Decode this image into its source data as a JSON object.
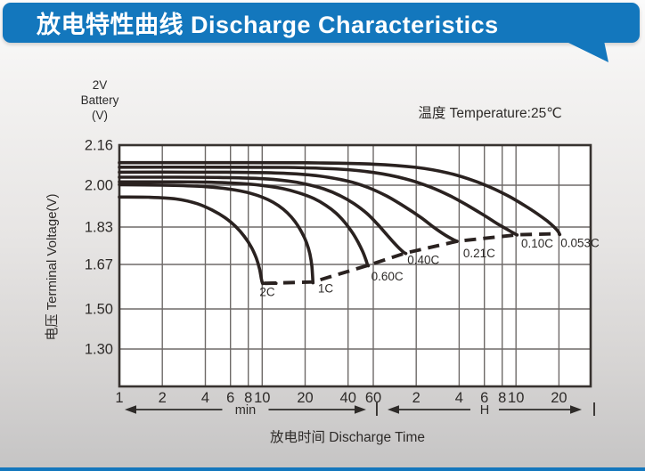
{
  "title_bar": {
    "title": "放电特性曲线 Discharge Characteristics"
  },
  "corner_label": {
    "lines": [
      "2V",
      "Battery",
      "(V)"
    ]
  },
  "chart_data": {
    "type": "line",
    "title": "放电特性曲线 Discharge Characteristics",
    "temperature_note": "温度 Temperature:25℃",
    "xlabel": "放电时间 Discharge Time",
    "ylabel": "电压 Terminal Voltage(V)",
    "x_scale": "log",
    "x_range_minutes": [
      1,
      2000
    ],
    "grid": true,
    "y_ticks": [
      {
        "value": 2.16,
        "label": "2.16"
      },
      {
        "value": 2.0,
        "label": "2.00"
      },
      {
        "value": 1.83,
        "label": "1.83"
      },
      {
        "value": 1.67,
        "label": "1.67"
      },
      {
        "value": 1.5,
        "label": "1.50"
      },
      {
        "value": 1.3,
        "label": "1.30"
      }
    ],
    "x_ticks": [
      {
        "minutes": 1,
        "label": "1"
      },
      {
        "minutes": 2,
        "label": "2"
      },
      {
        "minutes": 4,
        "label": "4"
      },
      {
        "minutes": 6,
        "label": "6"
      },
      {
        "minutes": 8,
        "label": "8"
      },
      {
        "minutes": 10,
        "label": "10"
      },
      {
        "minutes": 20,
        "label": "20"
      },
      {
        "minutes": 40,
        "label": "40"
      },
      {
        "minutes": 60,
        "label": "60"
      },
      {
        "minutes": 120,
        "label": "2"
      },
      {
        "minutes": 240,
        "label": "4"
      },
      {
        "minutes": 360,
        "label": "6"
      },
      {
        "minutes": 480,
        "label": "8"
      },
      {
        "minutes": 600,
        "label": "10"
      },
      {
        "minutes": 1200,
        "label": "20"
      }
    ],
    "x_unit_ranges": [
      {
        "label": "min",
        "from_minutes": 1,
        "to_minutes": 60
      },
      {
        "label": "H",
        "from_minutes": 60,
        "to_minutes": 2000
      }
    ],
    "series": [
      {
        "name": "2C",
        "label_at": [
          9.6,
          1.549
        ],
        "points": [
          [
            1,
            1.952
          ],
          [
            1.6,
            1.951
          ],
          [
            2.5,
            1.944
          ],
          [
            3.5,
            1.925
          ],
          [
            4.5,
            1.898
          ],
          [
            5.5,
            1.868
          ],
          [
            6.5,
            1.833
          ],
          [
            7.5,
            1.79
          ],
          [
            8.4,
            1.744
          ],
          [
            9.1,
            1.697
          ],
          [
            9.6,
            1.652
          ],
          [
            10,
            1.602
          ],
          [
            10.4,
            1.598
          ],
          [
            12.5,
            1.598
          ]
        ]
      },
      {
        "name": "1C",
        "label_at": [
          24.6,
          1.563
        ],
        "points": [
          [
            1,
            2.002
          ],
          [
            2,
            2.0
          ],
          [
            3.5,
            1.996
          ],
          [
            5,
            1.989
          ],
          [
            7,
            1.977
          ],
          [
            9,
            1.961
          ],
          [
            11,
            1.941
          ],
          [
            13,
            1.917
          ],
          [
            15,
            1.888
          ],
          [
            17,
            1.852
          ],
          [
            19,
            1.806
          ],
          [
            20.5,
            1.762
          ],
          [
            21.6,
            1.714
          ],
          [
            22.3,
            1.663
          ],
          [
            22.7,
            1.6
          ]
        ]
      },
      {
        "name": "0.60C",
        "label_at": [
          58,
          1.608
        ],
        "points": [
          [
            1,
            2.013
          ],
          [
            2,
            2.013
          ],
          [
            4,
            2.012
          ],
          [
            7,
            2.007
          ],
          [
            10,
            1.999
          ],
          [
            14,
            1.986
          ],
          [
            18,
            1.969
          ],
          [
            23,
            1.946
          ],
          [
            28,
            1.918
          ],
          [
            33,
            1.886
          ],
          [
            38,
            1.848
          ],
          [
            43,
            1.805
          ],
          [
            47,
            1.765
          ],
          [
            50.5,
            1.726
          ],
          [
            53,
            1.694
          ],
          [
            54.8,
            1.668
          ],
          [
            55.5,
            1.665
          ]
        ]
      },
      {
        "name": "0.40C",
        "label_at": [
          104,
          1.672
        ],
        "points": [
          [
            1,
            2.032
          ],
          [
            2.5,
            2.032
          ],
          [
            5,
            2.031
          ],
          [
            10,
            2.026
          ],
          [
            15,
            2.017
          ],
          [
            20,
            2.005
          ],
          [
            27,
            1.985
          ],
          [
            35,
            1.958
          ],
          [
            44,
            1.925
          ],
          [
            54,
            1.886
          ],
          [
            64,
            1.843
          ],
          [
            74,
            1.8
          ],
          [
            84,
            1.762
          ],
          [
            92,
            1.737
          ],
          [
            98,
            1.722
          ],
          [
            101.5,
            1.717
          ]
        ]
      },
      {
        "name": "0.21C",
        "label_at": [
          256,
          1.7
        ],
        "points": [
          [
            1,
            2.052
          ],
          [
            3,
            2.052
          ],
          [
            8,
            2.051
          ],
          [
            15,
            2.047
          ],
          [
            25,
            2.037
          ],
          [
            40,
            2.016
          ],
          [
            55,
            1.991
          ],
          [
            75,
            1.955
          ],
          [
            100,
            1.912
          ],
          [
            130,
            1.868
          ],
          [
            160,
            1.828
          ],
          [
            190,
            1.797
          ],
          [
            215,
            1.778
          ],
          [
            232,
            1.769
          ]
        ]
      },
      {
        "name": "0.10C",
        "label_at": [
          652,
          1.742
        ],
        "points": [
          [
            1,
            2.072
          ],
          [
            5,
            2.072
          ],
          [
            15,
            2.071
          ],
          [
            35,
            2.064
          ],
          [
            60,
            2.051
          ],
          [
            100,
            2.026
          ],
          [
            150,
            1.993
          ],
          [
            210,
            1.955
          ],
          [
            280,
            1.915
          ],
          [
            360,
            1.877
          ],
          [
            440,
            1.845
          ],
          [
            510,
            1.823
          ],
          [
            570,
            1.806
          ],
          [
            610,
            1.796
          ]
        ]
      },
      {
        "name": "0.053C",
        "label_at": [
          1230,
          1.744
        ],
        "points": [
          [
            1,
            2.09
          ],
          [
            8,
            2.09
          ],
          [
            25,
            2.089
          ],
          [
            60,
            2.084
          ],
          [
            120,
            2.071
          ],
          [
            200,
            2.049
          ],
          [
            300,
            2.019
          ],
          [
            420,
            1.985
          ],
          [
            550,
            1.951
          ],
          [
            700,
            1.915
          ],
          [
            850,
            1.883
          ],
          [
            1000,
            1.853
          ],
          [
            1100,
            1.832
          ],
          [
            1180,
            1.812
          ],
          [
            1215,
            1.798
          ]
        ]
      }
    ],
    "cutoff_line": {
      "style": "dashed",
      "points": [
        [
          10.4,
          1.598
        ],
        [
          22.7,
          1.603
        ],
        [
          55.5,
          1.667
        ],
        [
          101.5,
          1.719
        ],
        [
          232,
          1.769
        ],
        [
          610,
          1.797
        ],
        [
          1225,
          1.802
        ]
      ]
    },
    "colors": {
      "curve": "#2a2220",
      "grid": "#6e6a68",
      "border": "#37322f",
      "text": "#2e2b29",
      "accent_blue": "#1377bd",
      "plot_bg": "#ffffff"
    }
  }
}
